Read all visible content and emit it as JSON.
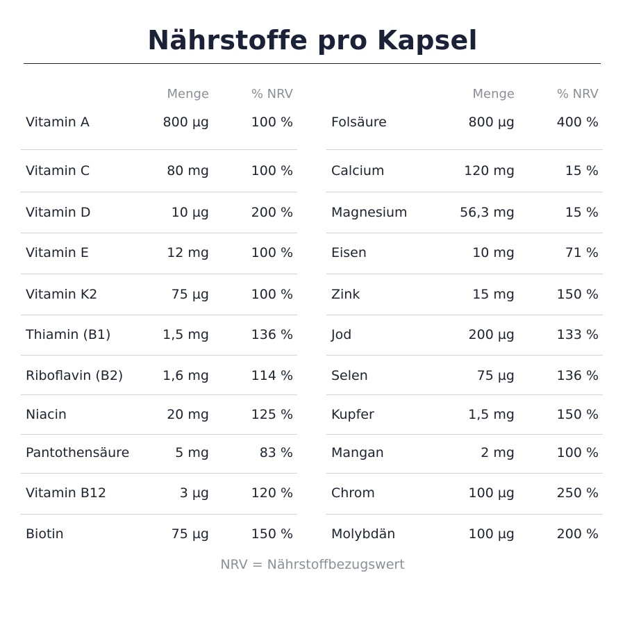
{
  "title": "Nährstoffe pro Kapsel",
  "table": {
    "header": {
      "amount": "Menge",
      "nrv": "% NRV"
    },
    "left": [
      {
        "name": "Vitamin A",
        "amount": "800 µg",
        "nrv": "100 %"
      },
      {
        "name": "Vitamin C",
        "amount": "80 mg",
        "nrv": "100 %"
      },
      {
        "name": "Vitamin D",
        "amount": "10 µg",
        "nrv": "200 %"
      },
      {
        "name": "Vitamin E",
        "amount": "12 mg",
        "nrv": "100 %"
      },
      {
        "name": "Vitamin K2",
        "amount": "75 µg",
        "nrv": "100 %"
      },
      {
        "name": "Thiamin (B1)",
        "amount": "1,5 mg",
        "nrv": "136 %"
      },
      {
        "name": "Riboflavin (B2)",
        "amount": "1,6 mg",
        "nrv": "114 %"
      },
      {
        "name": "Niacin",
        "amount": "20 mg",
        "nrv": "125 %"
      },
      {
        "name": "Pantothensäure",
        "amount": "5 mg",
        "nrv": "83 %"
      },
      {
        "name": "Vitamin B12",
        "amount": "3 µg",
        "nrv": "120 %"
      },
      {
        "name": "Biotin",
        "amount": "75 µg",
        "nrv": "150 %"
      }
    ],
    "right": [
      {
        "name": "Folsäure",
        "amount": "800 µg",
        "nrv": "400 %"
      },
      {
        "name": "Calcium",
        "amount": "120 mg",
        "nrv": "15 %"
      },
      {
        "name": "Magnesium",
        "amount": "56,3 mg",
        "nrv": "15 %"
      },
      {
        "name": "Eisen",
        "amount": "10 mg",
        "nrv": "71 %"
      },
      {
        "name": "Zink",
        "amount": "15 mg",
        "nrv": "150 %"
      },
      {
        "name": "Jod",
        "amount": "200 µg",
        "nrv": "133 %"
      },
      {
        "name": "Selen",
        "amount": "75 µg",
        "nrv": "136 %"
      },
      {
        "name": "Kupfer",
        "amount": "1,5 mg",
        "nrv": "150 %"
      },
      {
        "name": "Mangan",
        "amount": "2 mg",
        "nrv": "100 %"
      },
      {
        "name": "Chrom",
        "amount": "100 µg",
        "nrv": "250 %"
      },
      {
        "name": "Molybdän",
        "amount": "100 µg",
        "nrv": "200 %"
      }
    ]
  },
  "footnote": "NRV = Nährstoffbezugswert",
  "colors": {
    "title": "#1b2238",
    "text": "#1c2230",
    "muted": "#8a8f98",
    "rule": "#cfd3d8"
  }
}
